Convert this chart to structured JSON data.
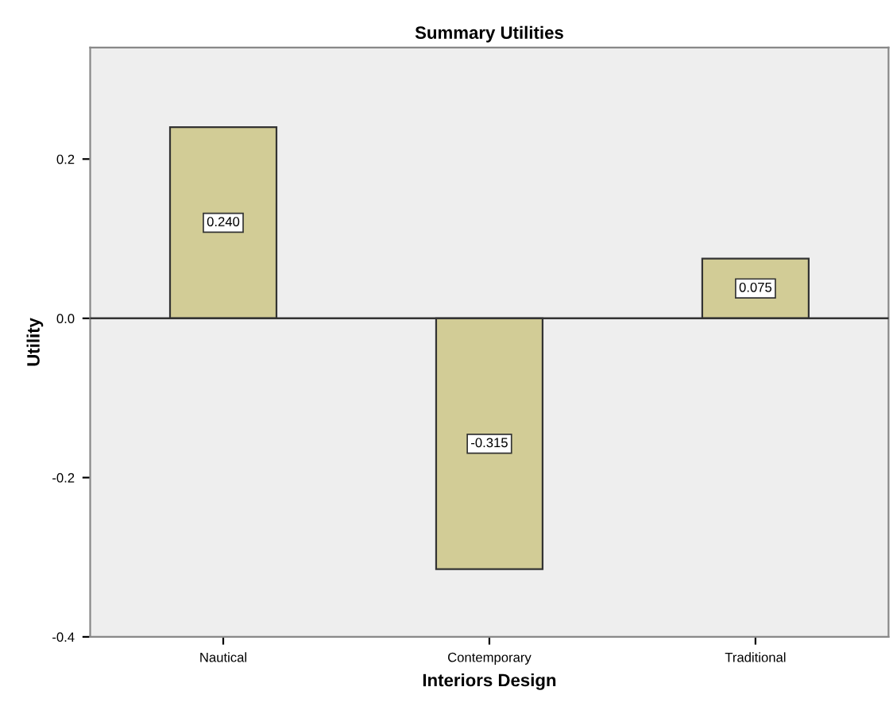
{
  "chart_data": {
    "type": "bar",
    "title": "Summary Utilities",
    "xlabel": "Interiors Design",
    "ylabel": "Utility",
    "categories": [
      "Nautical",
      "Contemporary",
      "Traditional"
    ],
    "values": [
      0.24,
      -0.315,
      0.075
    ],
    "value_labels": [
      "0.240",
      "-0.315",
      "0.075"
    ],
    "color": "#d2cc96",
    "ylim": [
      -0.4,
      0.34
    ],
    "yticks": [
      {
        "value": -0.4,
        "label": "-0.4"
      },
      {
        "value": -0.2,
        "label": "-0.2"
      },
      {
        "value": 0,
        "label": "0.0"
      },
      0.2
    ],
    "ref_lines": [
      {
        "axis": "y",
        "value": 0,
        "color": "#333333"
      }
    ],
    "grid": false,
    "legend": false
  }
}
